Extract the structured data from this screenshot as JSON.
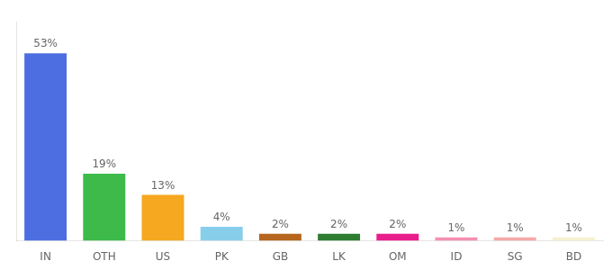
{
  "chart_data": {
    "type": "bar",
    "categories": [
      "IN",
      "OTH",
      "US",
      "PK",
      "GB",
      "LK",
      "OM",
      "ID",
      "SG",
      "BD"
    ],
    "values": [
      53,
      19,
      13,
      4,
      2,
      2,
      2,
      1,
      1,
      1
    ],
    "value_labels": [
      "53%",
      "19%",
      "13%",
      "4%",
      "2%",
      "2%",
      "2%",
      "1%",
      "1%",
      "1%"
    ],
    "colors": [
      "#4d6ee0",
      "#3dba4a",
      "#f5a820",
      "#87ceeb",
      "#b5651d",
      "#2e7d32",
      "#e91e8c",
      "#f48fb1",
      "#f4a9a8",
      "#f5f0d0"
    ],
    "ylim": [
      0,
      62
    ],
    "grid": false,
    "tick_labels": "x",
    "data_labels": true
  }
}
